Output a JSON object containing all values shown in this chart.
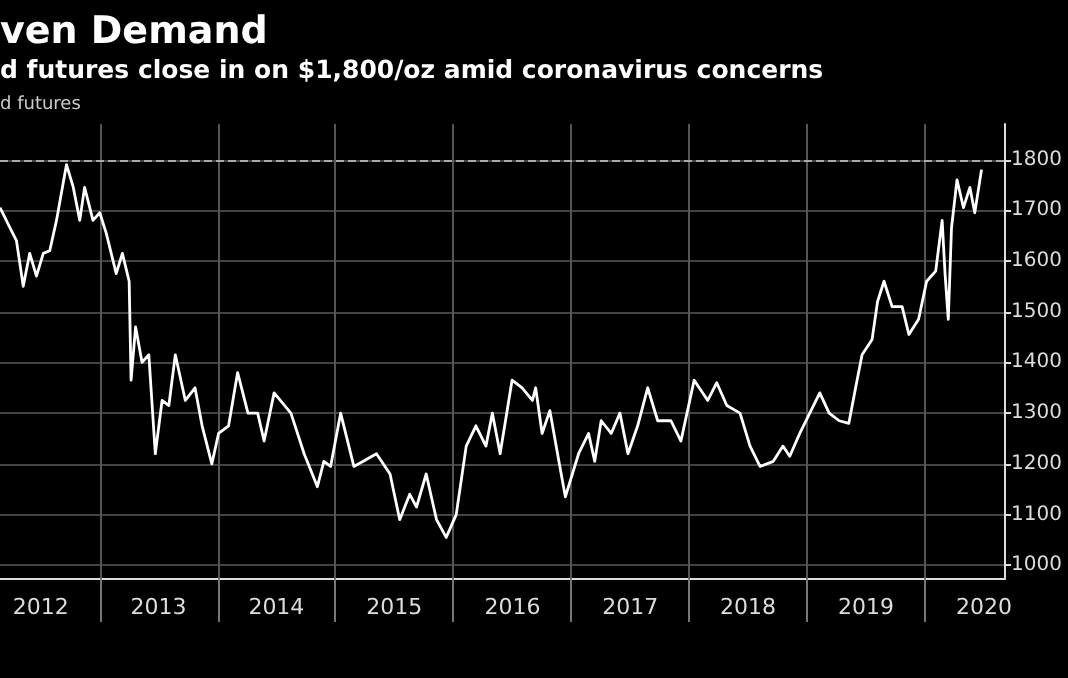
{
  "chart_data": {
    "type": "line",
    "title": "ven Demand",
    "subtitle": "d futures close in on $1,800/oz amid coronavirus concerns",
    "annotations": [
      "d futures"
    ],
    "x": [
      "2012-02-27",
      "2012-03-29",
      "2012-04-18",
      "2012-05-09",
      "2012-05-29",
      "2012-06-19",
      "2012-07-10",
      "2012-07-30",
      "2012-08-20",
      "2012-09-20",
      "2012-10-11",
      "2012-10-31",
      "2012-11-15",
      "2012-12-11",
      "2013-01-01",
      "2013-01-21",
      "2013-02-21",
      "2013-03-12",
      "2013-04-02",
      "2013-04-08",
      "2013-04-22",
      "2013-05-12",
      "2013-06-02",
      "2013-06-22",
      "2013-07-13",
      "2013-08-03",
      "2013-08-23",
      "2013-09-23",
      "2013-10-23",
      "2013-11-14",
      "2013-12-14",
      "2014-01-04",
      "2014-02-04",
      "2014-03-04",
      "2014-04-05",
      "2014-05-05",
      "2014-05-25",
      "2014-06-25",
      "2014-08-16",
      "2014-09-26",
      "2014-11-06",
      "2014-11-26",
      "2014-12-17",
      "2015-01-17",
      "2015-02-27",
      "2015-03-28",
      "2015-05-08",
      "2015-06-19",
      "2015-07-19",
      "2015-08-19",
      "2015-09-09",
      "2015-10-09",
      "2015-11-10",
      "2015-12-10",
      "2016-01-10",
      "2016-02-10",
      "2016-03-11",
      "2016-04-11",
      "2016-05-01",
      "2016-05-25",
      "2016-07-01",
      "2016-08-01",
      "2016-09-02",
      "2016-09-12",
      "2016-10-02",
      "2016-10-26",
      "2016-11-23",
      "2016-12-13",
      "2017-01-23",
      "2017-02-23",
      "2017-03-14",
      "2017-04-03",
      "2017-05-04",
      "2017-05-31",
      "2017-06-25",
      "2017-07-25",
      "2017-08-25",
      "2017-09-25",
      "2017-11-05",
      "2017-12-06",
      "2018-01-16",
      "2018-02-27",
      "2018-03-27",
      "2018-04-27",
      "2018-06-07",
      "2018-07-08",
      "2018-08-08",
      "2018-09-18",
      "2018-10-18",
      "2018-11-08",
      "2018-12-09",
      "2019-01-09",
      "2019-02-09",
      "2019-03-10",
      "2019-04-10",
      "2019-05-10",
      "2019-05-31",
      "2019-06-20",
      "2019-07-21",
      "2019-08-07",
      "2019-08-27",
      "2019-09-21",
      "2019-10-22",
      "2019-11-12",
      "2019-12-12",
      "2020-01-06",
      "2020-02-03",
      "2020-02-23",
      "2020-03-03",
      "2020-03-13",
      "2020-03-23",
      "2020-04-09",
      "2020-04-29",
      "2020-05-19",
      "2020-06-03",
      "2020-06-24"
    ],
    "series": [
      {
        "color": "#ffffff",
        "values": [
          1705,
          1665,
          1640,
          1550,
          1615,
          1570,
          1615,
          1620,
          1680,
          1790,
          1745,
          1680,
          1745,
          1680,
          1695,
          1655,
          1575,
          1615,
          1560,
          1365,
          1470,
          1400,
          1415,
          1220,
          1325,
          1315,
          1415,
          1325,
          1350,
          1275,
          1200,
          1260,
          1275,
          1380,
          1300,
          1300,
          1245,
          1340,
          1300,
          1220,
          1155,
          1205,
          1195,
          1300,
          1195,
          1205,
          1220,
          1180,
          1090,
          1140,
          1115,
          1180,
          1090,
          1055,
          1100,
          1235,
          1275,
          1235,
          1300,
          1220,
          1365,
          1350,
          1325,
          1350,
          1260,
          1305,
          1205,
          1135,
          1220,
          1260,
          1205,
          1285,
          1260,
          1300,
          1220,
          1275,
          1350,
          1285,
          1285,
          1245,
          1365,
          1325,
          1360,
          1315,
          1300,
          1235,
          1195,
          1205,
          1235,
          1215,
          1260,
          1300,
          1340,
          1300,
          1285,
          1280,
          1350,
          1415,
          1445,
          1520,
          1560,
          1510,
          1510,
          1455,
          1485,
          1560,
          1580,
          1680,
          1575,
          1485,
          1665,
          1760,
          1705,
          1745,
          1695,
          1780
        ]
      }
    ],
    "xlim": [
      "2012-02-27",
      "2020-09-05"
    ],
    "xticks": [
      {
        "value": "2013-01-01",
        "label": null
      },
      {
        "value": "2014-01-01",
        "label": null
      },
      {
        "value": "2015-01-01",
        "label": null
      },
      {
        "value": "2016-01-01",
        "label": null
      },
      {
        "value": "2017-01-01",
        "label": null
      },
      {
        "value": "2018-01-01",
        "label": null
      },
      {
        "value": "2019-01-01",
        "label": null
      },
      {
        "value": "2020-01-01",
        "label": null
      },
      {
        "value": "2012-07-02",
        "label": "2012"
      },
      {
        "value": "2013-07-02",
        "label": "2013"
      },
      {
        "value": "2014-07-02",
        "label": "2014"
      },
      {
        "value": "2015-07-02",
        "label": "2015"
      },
      {
        "value": "2016-07-02",
        "label": "2016"
      },
      {
        "value": "2017-07-02",
        "label": "2017"
      },
      {
        "value": "2018-07-02",
        "label": "2018"
      },
      {
        "value": "2019-07-02",
        "label": "2019"
      },
      {
        "value": "2020-07-02",
        "label": "2020"
      }
    ],
    "ylim": [
      975,
      1870
    ],
    "yticks": [
      1000,
      1100,
      1200,
      1300,
      1400,
      1500,
      1600,
      1700,
      1800
    ],
    "ref_lines": [
      {
        "axis": "y",
        "value": 1800,
        "color": "#aaaaaa",
        "line_style": "dashed"
      }
    ],
    "grid": true,
    "marker": "none",
    "line_style": "solid"
  }
}
